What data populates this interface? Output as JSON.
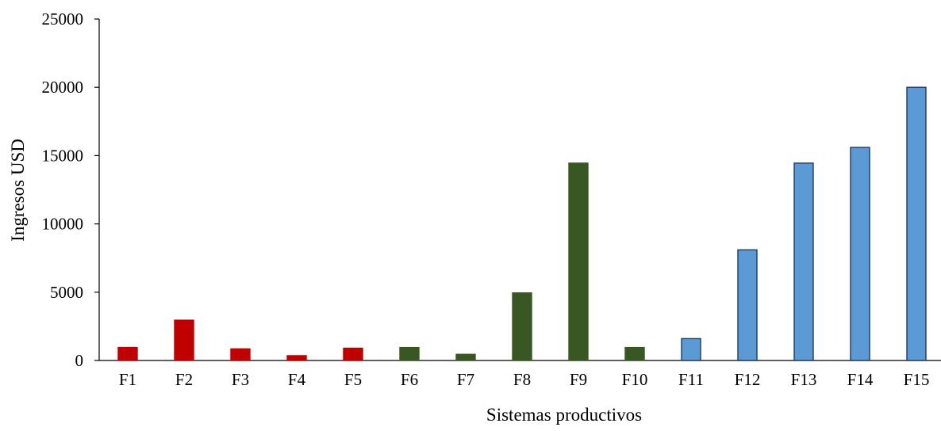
{
  "chart_data": {
    "type": "bar",
    "title": "",
    "xlabel": "Sistemas productivos",
    "ylabel": "Ingresos USD",
    "ylim": [
      0,
      25000
    ],
    "yticks": [
      0,
      5000,
      10000,
      15000,
      20000,
      25000
    ],
    "grid": false,
    "legend": "none",
    "categories": [
      "F1",
      "F2",
      "F3",
      "F4",
      "F5",
      "F6",
      "F7",
      "F8",
      "F9",
      "F10",
      "F11",
      "F12",
      "F13",
      "F14",
      "F15"
    ],
    "values": [
      950,
      2950,
      850,
      350,
      900,
      950,
      450,
      4950,
      14450,
      950,
      1600,
      8100,
      14450,
      15600,
      20000
    ],
    "bar_colors": [
      "#c00000",
      "#c00000",
      "#c00000",
      "#c00000",
      "#c00000",
      "#385723",
      "#385723",
      "#385723",
      "#385723",
      "#385723",
      "#5b9bd5",
      "#5b9bd5",
      "#5b9bd5",
      "#5b9bd5",
      "#5b9bd5"
    ],
    "bar_outline_colors": [
      "#c00000",
      "#c00000",
      "#c00000",
      "#c00000",
      "#c00000",
      "#385723",
      "#385723",
      "#385723",
      "#385723",
      "#385723",
      "#1f3864",
      "#1f3864",
      "#1f3864",
      "#1f3864",
      "#1f3864"
    ]
  }
}
